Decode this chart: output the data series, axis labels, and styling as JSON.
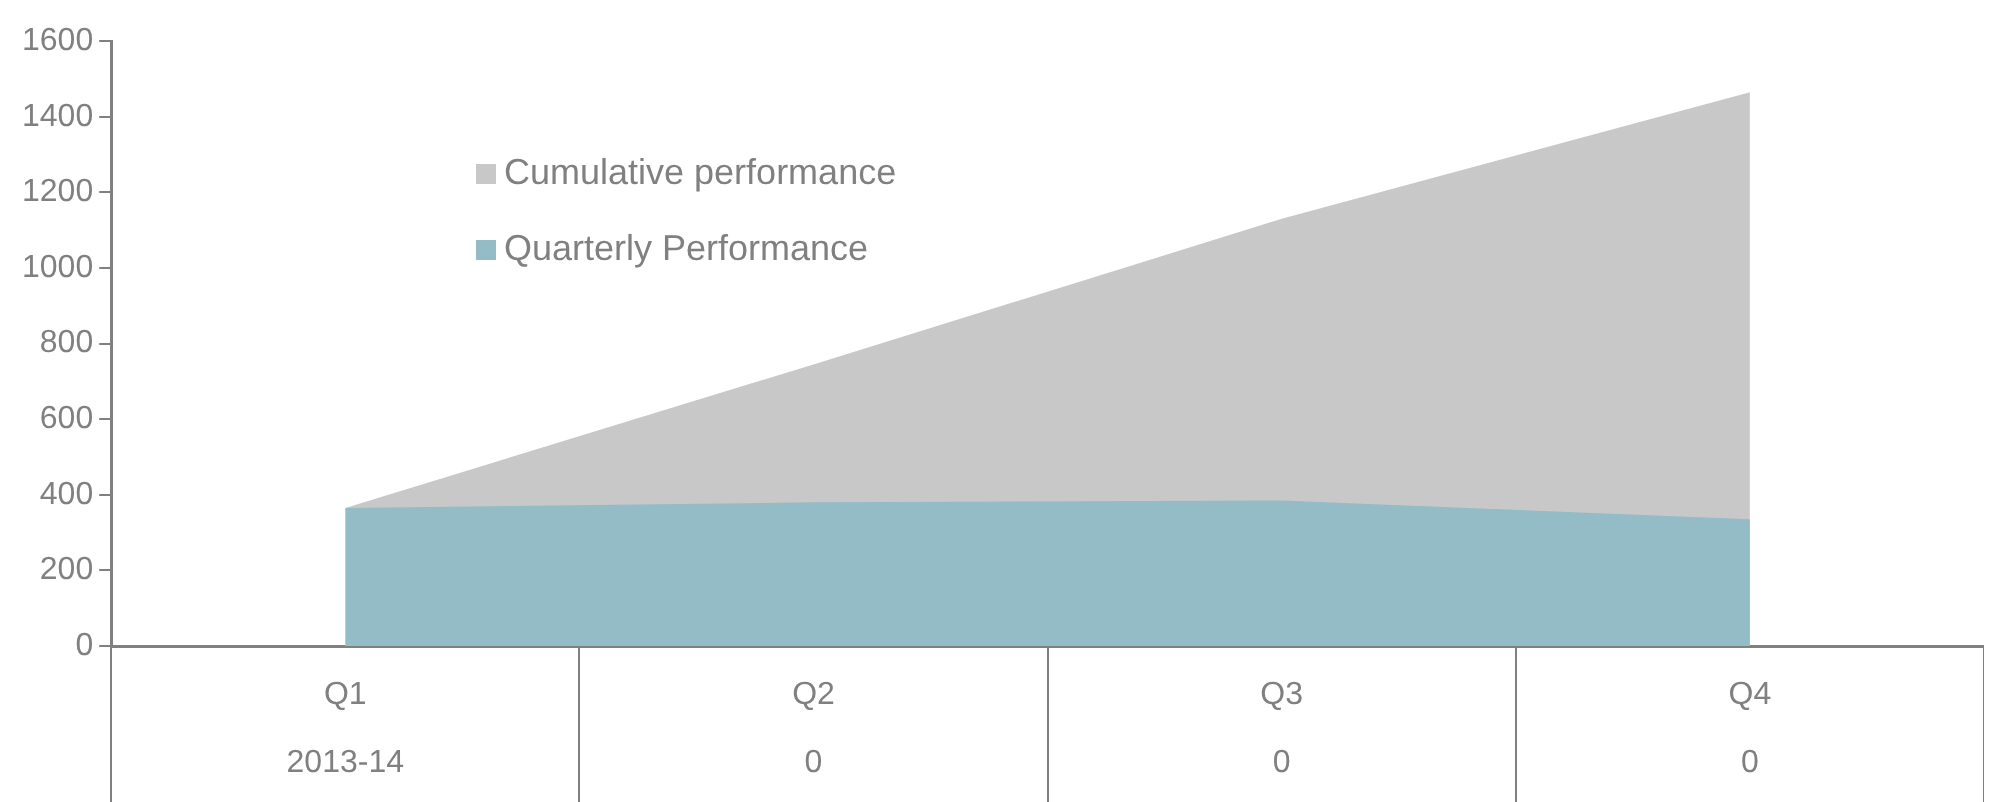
{
  "chart_data": {
    "type": "area",
    "categories": [
      "Q1\n2013-14",
      "Q2\n0",
      "Q3\n0",
      "Q4\n0"
    ],
    "series": [
      {
        "name": "Cumulative performance",
        "color": "#c8c8c8",
        "values": [
          365,
          745,
          1130,
          1465
        ]
      },
      {
        "name": "Quarterly Performance",
        "color": "#93bcc6",
        "values": [
          365,
          380,
          385,
          335
        ]
      }
    ],
    "ylim": [
      0,
      1600
    ],
    "yticks": [
      0,
      200,
      400,
      600,
      800,
      1000,
      1200,
      1400,
      1600
    ],
    "grid": false,
    "legend": "top left"
  }
}
